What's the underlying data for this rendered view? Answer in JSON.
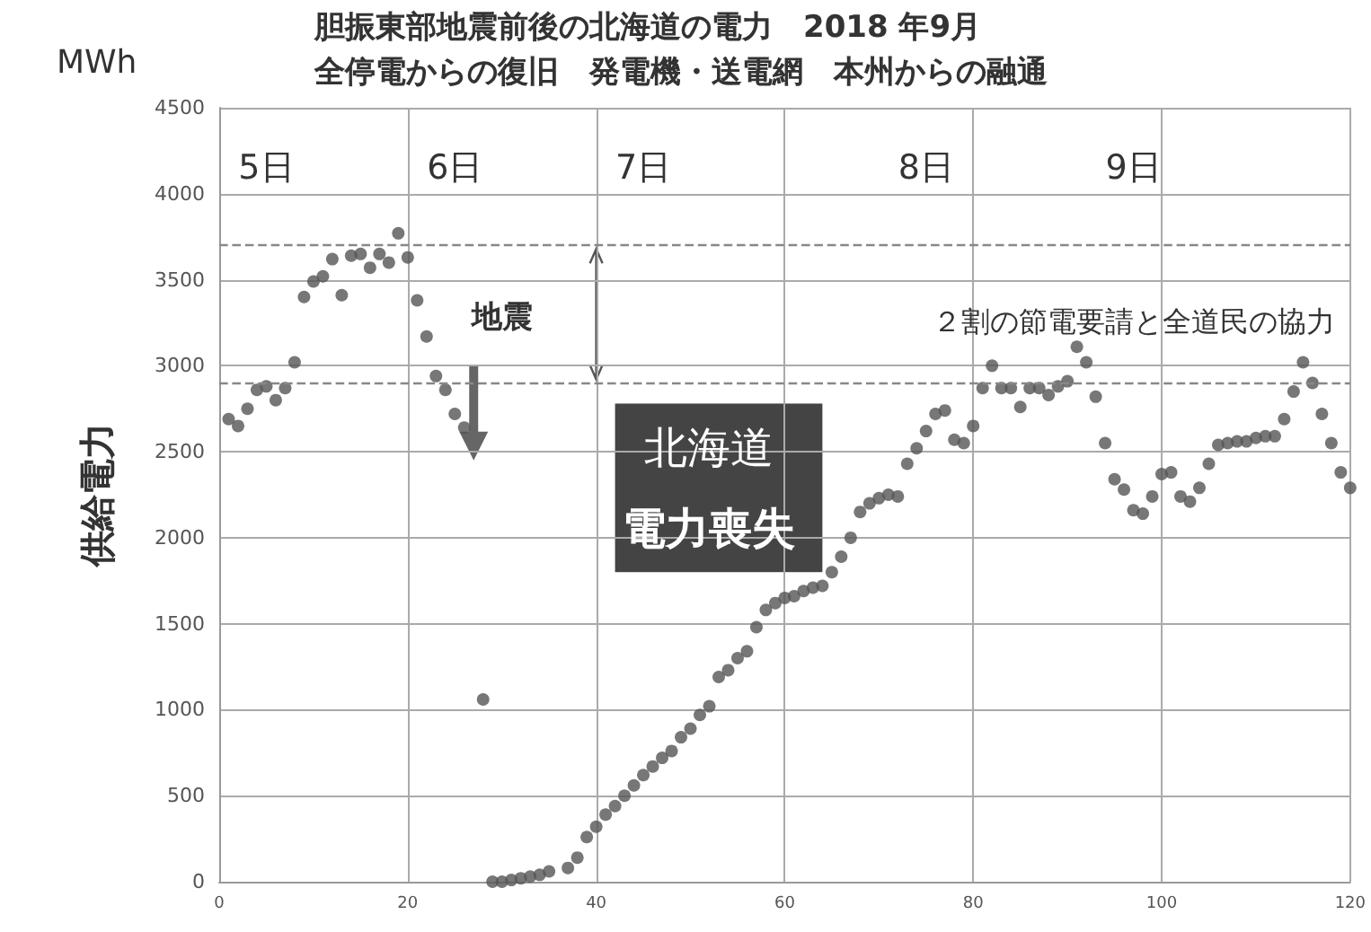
{
  "chart_data": {
    "type": "scatter",
    "title": "胆振東部地震前後の北海道の電力　2018 年9月",
    "subtitle": "全停電からの復旧　発電機・送電網　本州からの融通",
    "ylabel": "供給電力",
    "annotations": [
      "MWh",
      "5日",
      "6日",
      "7日",
      "8日",
      "9日",
      "地震",
      "北海道",
      "電力喪失",
      "２割の節電要請と全道民の協力"
    ],
    "series": [
      {
        "color": "#555555",
        "x": [
          1,
          2,
          3,
          4,
          5,
          6,
          7,
          8,
          9,
          10,
          11,
          12,
          13,
          14,
          15,
          16,
          17,
          18,
          19,
          20,
          21,
          22,
          23,
          24,
          25,
          26,
          28,
          29,
          30,
          31,
          32,
          33,
          34,
          35,
          37,
          38,
          39,
          40,
          41,
          42,
          43,
          44,
          45,
          46,
          47,
          48,
          49,
          50,
          51,
          52,
          53,
          54,
          55,
          56,
          57,
          58,
          59,
          60,
          61,
          62,
          63,
          64,
          65,
          66,
          67,
          68,
          69,
          70,
          71,
          72,
          73,
          74,
          75,
          76,
          77,
          78,
          79,
          80,
          81,
          82,
          83,
          84,
          85,
          86,
          87,
          88,
          89,
          90,
          91,
          92,
          93,
          94,
          95,
          96,
          97,
          98,
          99,
          100,
          101,
          102,
          103,
          104,
          105,
          106,
          107,
          108,
          109,
          110,
          111,
          112,
          113,
          114,
          115,
          116,
          117,
          118,
          119,
          120
        ],
        "values": [
          2690,
          2650,
          2750,
          2860,
          2880,
          2800,
          2870,
          3020,
          3400,
          3490,
          3520,
          3620,
          3410,
          3640,
          3650,
          3570,
          3650,
          3600,
          3770,
          3630,
          3380,
          3170,
          2940,
          2860,
          2720,
          2640,
          1060,
          0,
          0,
          10,
          20,
          30,
          40,
          60,
          80,
          140,
          260,
          320,
          390,
          440,
          500,
          560,
          620,
          670,
          720,
          760,
          840,
          890,
          970,
          1020,
          1190,
          1230,
          1300,
          1340,
          1480,
          1580,
          1620,
          1650,
          1660,
          1690,
          1710,
          1720,
          1800,
          1890,
          2000,
          2150,
          2200,
          2230,
          2250,
          2240,
          2430,
          2520,
          2620,
          2720,
          2740,
          2570,
          2550,
          2650,
          2870,
          3000,
          2870,
          2870,
          2760,
          2870,
          2870,
          2830,
          2880,
          2910,
          3110,
          3020,
          2820,
          2550,
          2340,
          2280,
          2160,
          2140,
          2240,
          2370,
          2380,
          2240,
          2210,
          2290,
          2430,
          2540,
          2550,
          2560,
          2560,
          2580,
          2590,
          2590,
          2690,
          2850,
          3020,
          2900,
          2720,
          2550,
          2380,
          2290
        ]
      }
    ],
    "ref_lines": [
      {
        "axis": "y",
        "value": 3700,
        "line_style": "dashed",
        "color": "#888888"
      },
      {
        "axis": "y",
        "value": 2900,
        "line_style": "dashed",
        "color": "#888888"
      }
    ],
    "xlim": [
      0,
      120
    ],
    "xticks": [
      0,
      20,
      40,
      60,
      80,
      100,
      120
    ],
    "ylim": [
      0,
      4500
    ],
    "yticks": [
      0,
      500,
      1000,
      1500,
      2000,
      2500,
      3000,
      3500,
      4000,
      4500
    ],
    "grid": true,
    "marker": "circle"
  }
}
